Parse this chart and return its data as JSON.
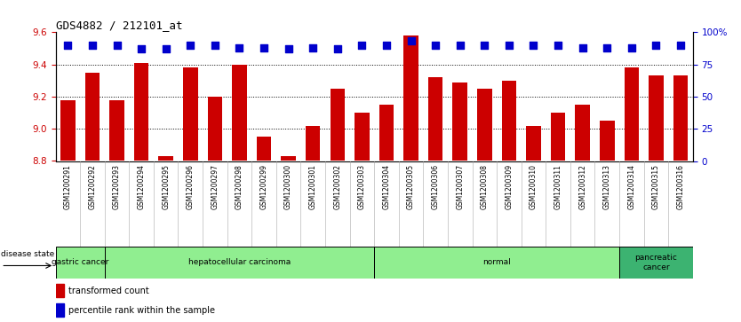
{
  "title": "GDS4882 / 212101_at",
  "categories": [
    "GSM1200291",
    "GSM1200292",
    "GSM1200293",
    "GSM1200294",
    "GSM1200295",
    "GSM1200296",
    "GSM1200297",
    "GSM1200298",
    "GSM1200299",
    "GSM1200300",
    "GSM1200301",
    "GSM1200302",
    "GSM1200303",
    "GSM1200304",
    "GSM1200305",
    "GSM1200306",
    "GSM1200307",
    "GSM1200308",
    "GSM1200309",
    "GSM1200310",
    "GSM1200311",
    "GSM1200312",
    "GSM1200313",
    "GSM1200314",
    "GSM1200315",
    "GSM1200316"
  ],
  "bar_values": [
    9.18,
    9.35,
    9.18,
    9.41,
    8.83,
    9.38,
    9.2,
    9.4,
    8.95,
    8.83,
    9.02,
    9.25,
    9.1,
    9.15,
    9.58,
    9.32,
    9.29,
    9.25,
    9.3,
    9.02,
    9.1,
    9.15,
    9.05,
    9.38,
    9.33,
    9.33
  ],
  "percentile_values": [
    90,
    90,
    90,
    87,
    87,
    90,
    90,
    88,
    88,
    87,
    88,
    87,
    90,
    90,
    93,
    90,
    90,
    90,
    90,
    90,
    90,
    88,
    88,
    88,
    90,
    90
  ],
  "bar_color": "#cc0000",
  "percentile_color": "#0000cc",
  "ylim_left": [
    8.8,
    9.6
  ],
  "ylim_right": [
    0,
    100
  ],
  "yticks_left": [
    8.8,
    9.0,
    9.2,
    9.4,
    9.6
  ],
  "yticks_right": [
    0,
    25,
    50,
    75,
    100
  ],
  "ytick_labels_right": [
    "0",
    "25",
    "50",
    "75",
    "100%"
  ],
  "grid_values": [
    9.0,
    9.2,
    9.4
  ],
  "legend_bar_label": "transformed count",
  "legend_pct_label": "percentile rank within the sample",
  "groups": [
    {
      "label": "gastric cancer",
      "start": 0,
      "end": 2,
      "color": "#90ee90"
    },
    {
      "label": "hepatocellular carcinoma",
      "start": 2,
      "end": 13,
      "color": "#90ee90"
    },
    {
      "label": "normal",
      "start": 13,
      "end": 23,
      "color": "#90ee90"
    },
    {
      "label": "pancreatic\ncancer",
      "start": 23,
      "end": 26,
      "color": "#3cb371"
    }
  ]
}
